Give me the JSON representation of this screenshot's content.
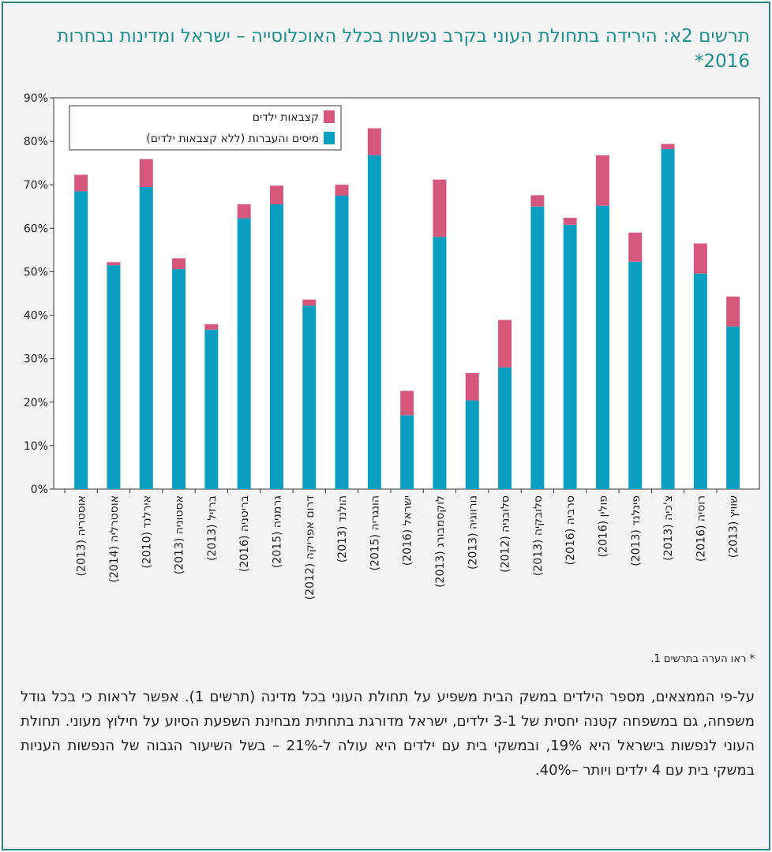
{
  "title": "תרשים 2א: הירידה בתחולת העוני בקרב נפשות בכלל האוכלוסייה – ישראל ומדינות נבחרות 2016*",
  "chart_data": {
    "type": "stacked-bar",
    "categories": [
      "אוסטריה (2013)",
      "אוסטרליה (2014)",
      "אירלנד (2010)",
      "אסטוניה (2013)",
      "ברזיל (2013)",
      "בריטניה (2016)",
      "גרמניה (2015)",
      "דרום אפריקה (2012)",
      "הולנד (2013)",
      "הונגריה (2015)",
      "ישראל (2016)",
      "לוקסמבורג (2013)",
      "נורווגיה (2013)",
      "סלובניה (2012)",
      "סלובקיה (2013)",
      "סרביה (2016)",
      "פולין (2016)",
      "פינלנד (2013)",
      "צ'כיה (2013)",
      "רוסיה (2016)",
      "שוויץ (2013)"
    ],
    "series": [
      {
        "name": "מיסים והעברות (ללא קצבאות ילדים)",
        "color": "#0a9ec0",
        "values": [
          68.5,
          51.5,
          69.5,
          50.6,
          36.7,
          62.3,
          65.5,
          42.2,
          67.5,
          76.8,
          17.0,
          58.0,
          20.4,
          28.0,
          65.0,
          60.8,
          65.2,
          52.3,
          78.2,
          49.6,
          37.4
        ]
      },
      {
        "name": "קצבאות ילדים",
        "color": "#d6577c",
        "values": [
          3.8,
          0.7,
          6.4,
          2.5,
          1.2,
          3.2,
          4.3,
          1.4,
          2.5,
          6.2,
          5.6,
          13.2,
          6.3,
          10.9,
          2.6,
          1.6,
          11.6,
          6.7,
          1.2,
          6.9,
          6.9
        ]
      }
    ],
    "ylim": [
      0,
      90
    ],
    "yticks": [
      {
        "value": 0,
        "label": "0%"
      },
      {
        "value": 10,
        "label": "10%"
      },
      {
        "value": 20,
        "label": "20%"
      },
      {
        "value": 30,
        "label": "30%"
      },
      {
        "value": 40,
        "label": "40%"
      },
      {
        "value": 50,
        "label": "50%"
      },
      {
        "value": 60,
        "label": "60%"
      },
      {
        "value": 70,
        "label": "70%"
      },
      {
        "value": 80,
        "label": "80%"
      },
      {
        "value": 90,
        "label": "90%"
      }
    ],
    "legend": "top-left"
  },
  "footnote": "* ראו הערה בתרשים 1.",
  "paragraph": "על-פי הממצאים, מספר הילדים במשק הבית משפיע על תחולת העוני בכל מדינה (תרשים 1). אפשר לראות כי בכל גודל משפחה, גם במשפחה קטנה יחסית של 3-1 ילדים, ישראל מדורגת בתחתית מבחינת השפעת הסיוע על חילוץ מעוני. תחולת העוני לנפשות בישראל היא 19%, ובמשקי בית עם ילדים היא עולה ל-21% – בשל השיעור הגבוה של הנפשות העניות במשקי בית עם 4 ילדים ויותר –40%."
}
